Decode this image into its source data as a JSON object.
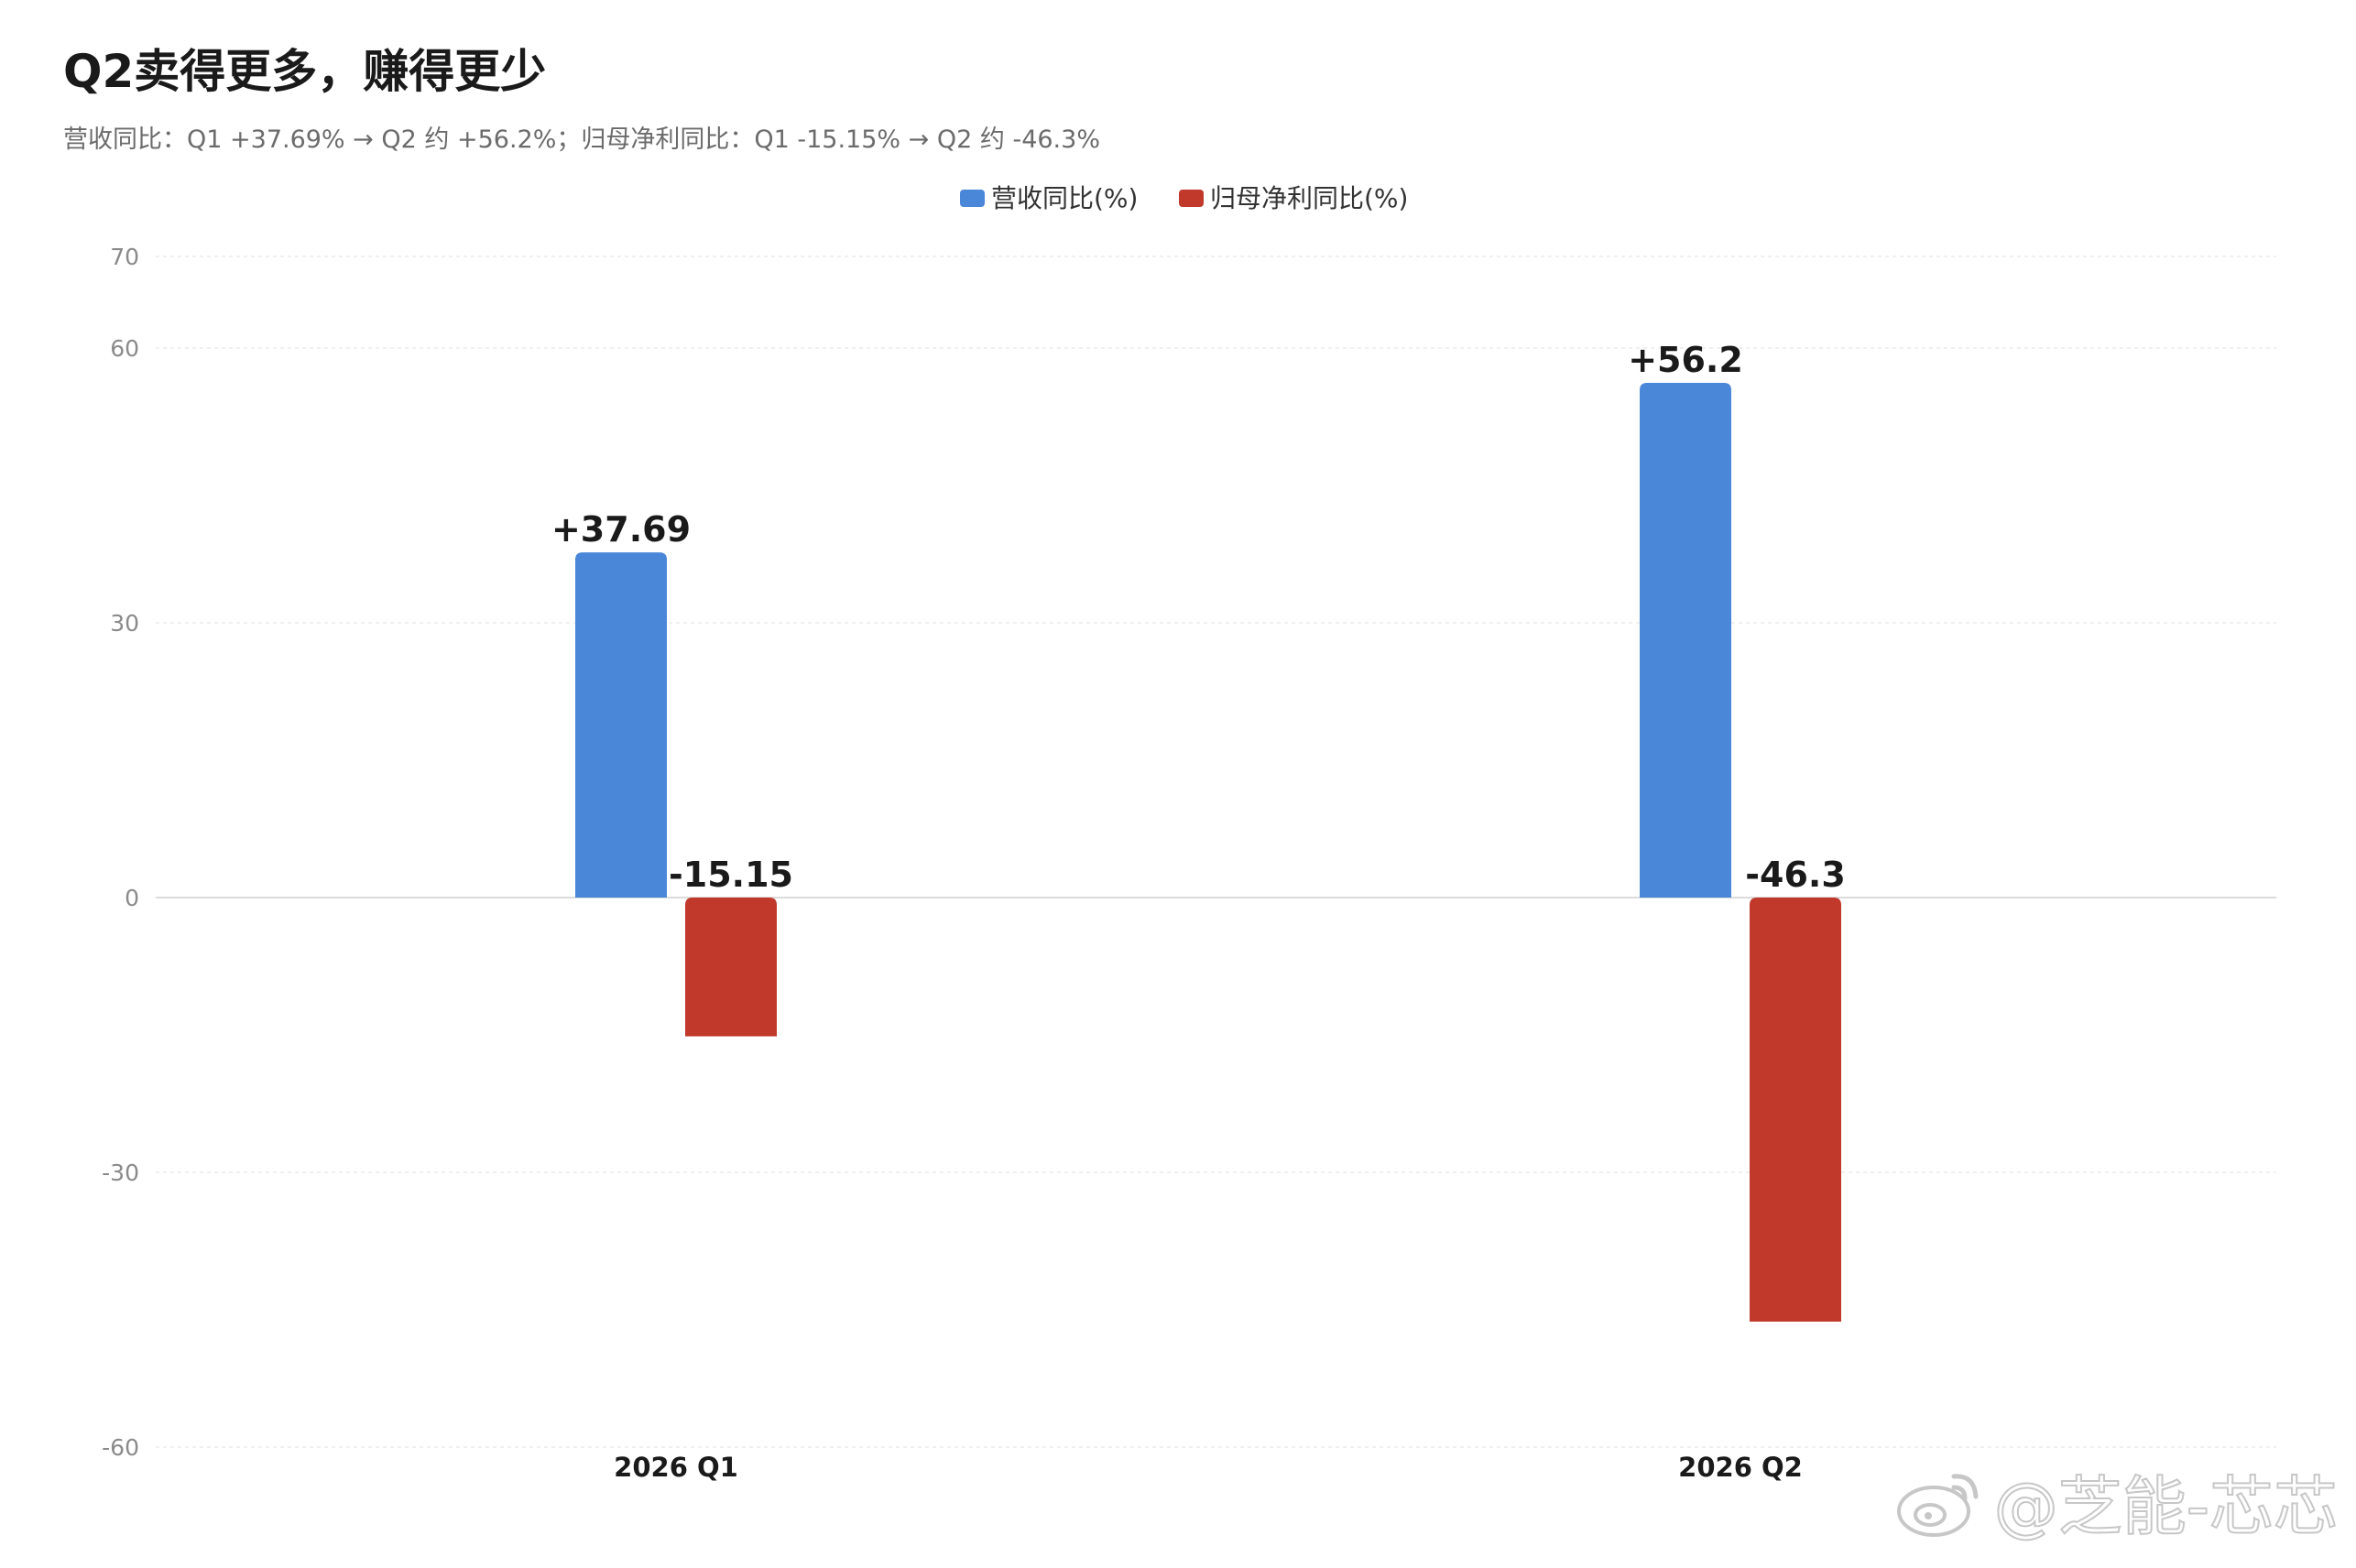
{
  "header": {
    "title": "Q2卖得更多，赚得更少",
    "subtitle": "营收同比：Q1 +37.69% → Q2 约 +56.2%；归母净利同比：Q1 -15.15% → Q2 约 -46.3%"
  },
  "watermark": {
    "text": "@芝能-芯芯",
    "icon": "weibo-icon"
  },
  "chart_data": {
    "type": "bar",
    "categories": [
      "2026 Q1",
      "2026 Q2"
    ],
    "series": [
      {
        "name": "营收同比(%)",
        "color": "#4a87d8",
        "values": [
          37.69,
          56.2
        ],
        "labels": [
          "+37.69",
          "+56.2"
        ]
      },
      {
        "name": "归母净利同比(%)",
        "color": "#c0392b",
        "values": [
          -15.15,
          -46.3
        ],
        "labels": [
          "-15.15",
          "-46.3"
        ]
      }
    ],
    "yticks": [
      70,
      60,
      30,
      0,
      -30,
      -60
    ],
    "ylim": [
      -60,
      70
    ],
    "grid": true,
    "legend": "top-center"
  }
}
